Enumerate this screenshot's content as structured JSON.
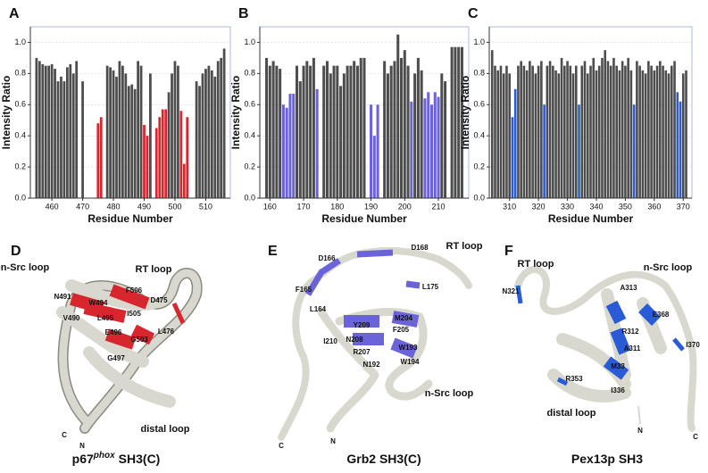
{
  "chart_data": [
    {
      "type": "bar",
      "title": "A",
      "xlabel": "Residue Number",
      "ylabel": "Intensity Ratio",
      "color": "#4d4d4d",
      "highlight_color": "#d8262e",
      "x": [
        455,
        456,
        457,
        458,
        459,
        460,
        461,
        462,
        463,
        464,
        465,
        466,
        467,
        468,
        469,
        470,
        471,
        472,
        473,
        474,
        475,
        476,
        477,
        478,
        479,
        480,
        481,
        482,
        483,
        484,
        485,
        486,
        487,
        488,
        489,
        490,
        491,
        492,
        493,
        494,
        495,
        496,
        497,
        498,
        499,
        500,
        501,
        502,
        503,
        504,
        505,
        506,
        507,
        508,
        509,
        510,
        511,
        512,
        513,
        514,
        515,
        516
      ],
      "values": [
        0.9,
        0.88,
        0.86,
        0.85,
        0.85,
        0.86,
        0.83,
        0.75,
        0.78,
        0.75,
        0.84,
        0.86,
        0.8,
        0.88,
        null,
        0.75,
        null,
        null,
        null,
        null,
        0.48,
        0.52,
        null,
        0.85,
        0.84,
        0.82,
        0.78,
        0.88,
        0.85,
        0.8,
        0.72,
        0.73,
        0.7,
        0.88,
        0.85,
        0.47,
        0.4,
        0.8,
        null,
        0.45,
        0.52,
        0.57,
        0.57,
        0.68,
        0.8,
        0.88,
        0.85,
        0.56,
        0.22,
        0.52,
        null,
        null,
        0.75,
        0.72,
        0.8,
        0.83,
        0.85,
        0.82,
        0.78,
        0.88,
        0.9,
        0.96
      ],
      "highlighted": [
        false,
        false,
        false,
        false,
        false,
        false,
        false,
        false,
        false,
        false,
        false,
        false,
        false,
        false,
        false,
        false,
        false,
        false,
        false,
        false,
        true,
        true,
        false,
        false,
        false,
        false,
        false,
        false,
        false,
        false,
        false,
        false,
        false,
        false,
        false,
        true,
        true,
        false,
        false,
        true,
        true,
        true,
        true,
        false,
        false,
        false,
        false,
        true,
        true,
        true,
        false,
        false,
        false,
        false,
        false,
        false,
        false,
        false,
        false,
        false,
        false,
        false
      ],
      "xlim": [
        453,
        518
      ],
      "xticks": [
        460,
        470,
        480,
        490,
        500,
        510
      ],
      "ylim": [
        0,
        1.1
      ],
      "yticks": [
        {
          "value": 0,
          "label": "0.0"
        },
        {
          "value": 0.2,
          "label": "0.2"
        },
        {
          "value": 0.4,
          "label": "0.4"
        },
        {
          "value": 0.6,
          "label": "0.6"
        },
        {
          "value": 0.8,
          "label": "0.8"
        },
        {
          "value": 1,
          "label": "1.0"
        }
      ]
    },
    {
      "type": "bar",
      "title": "B",
      "xlabel": "Residue Number",
      "ylabel": "Intensity Ratio",
      "color": "#4d4d4d",
      "highlight_color": "#6b63d8",
      "x": [
        159,
        160,
        161,
        162,
        163,
        164,
        165,
        166,
        167,
        168,
        169,
        170,
        171,
        172,
        173,
        174,
        175,
        176,
        177,
        178,
        179,
        180,
        181,
        182,
        183,
        184,
        185,
        186,
        187,
        188,
        189,
        190,
        191,
        192,
        193,
        194,
        195,
        196,
        197,
        198,
        199,
        200,
        201,
        202,
        203,
        204,
        205,
        206,
        207,
        208,
        209,
        210,
        211,
        212,
        213,
        214,
        215,
        216,
        217
      ],
      "values": [
        0.9,
        0.85,
        0.88,
        0.85,
        0.83,
        0.6,
        0.58,
        0.67,
        0.67,
        0.85,
        0.75,
        0.85,
        0.88,
        0.85,
        0.9,
        0.7,
        null,
        0.85,
        0.88,
        0.8,
        0.85,
        0.85,
        0.72,
        0.8,
        0.85,
        0.85,
        0.88,
        0.85,
        0.9,
        0.9,
        null,
        0.6,
        0.4,
        0.6,
        null,
        0.88,
        0.8,
        0.85,
        0.88,
        1.05,
        0.9,
        0.95,
        0.85,
        0.62,
        0.8,
        0.9,
        0.82,
        0.64,
        0.68,
        0.6,
        0.68,
        0.65,
        0.8,
        0.75,
        null,
        0.97,
        0.97,
        0.97,
        0.97
      ],
      "highlighted": [
        false,
        false,
        false,
        false,
        false,
        true,
        true,
        true,
        true,
        false,
        false,
        false,
        false,
        false,
        false,
        true,
        false,
        false,
        false,
        false,
        false,
        false,
        false,
        false,
        false,
        false,
        false,
        false,
        false,
        false,
        false,
        true,
        true,
        true,
        false,
        false,
        false,
        false,
        false,
        false,
        false,
        false,
        false,
        true,
        false,
        false,
        false,
        true,
        true,
        true,
        true,
        true,
        false,
        false,
        false,
        false,
        false,
        false,
        false
      ],
      "xlim": [
        157,
        219
      ],
      "xticks": [
        160,
        170,
        180,
        190,
        200,
        210
      ],
      "ylim": [
        0,
        1.1
      ],
      "yticks": [
        {
          "value": 0,
          "label": "0.0"
        },
        {
          "value": 0.2,
          "label": "0.2"
        },
        {
          "value": 0.4,
          "label": "0.4"
        },
        {
          "value": 0.6,
          "label": "0.6"
        },
        {
          "value": 0.8,
          "label": "0.8"
        },
        {
          "value": 1,
          "label": "1.0"
        }
      ]
    },
    {
      "type": "bar",
      "title": "C",
      "xlabel": "Residue Number",
      "ylabel": "Intensity Ratio",
      "color": "#4d4d4d",
      "highlight_color": "#2a5bd7",
      "x": [
        304,
        305,
        306,
        307,
        308,
        309,
        310,
        311,
        312,
        313,
        314,
        315,
        316,
        317,
        318,
        319,
        320,
        321,
        322,
        323,
        324,
        325,
        326,
        327,
        328,
        329,
        330,
        331,
        332,
        333,
        334,
        335,
        336,
        337,
        338,
        339,
        340,
        341,
        342,
        343,
        344,
        345,
        346,
        347,
        348,
        349,
        350,
        351,
        352,
        353,
        354,
        355,
        356,
        357,
        358,
        359,
        360,
        361,
        362,
        363,
        364,
        365,
        366,
        367,
        368,
        369,
        370,
        371
      ],
      "values": [
        0.95,
        0.85,
        0.82,
        0.85,
        0.8,
        0.85,
        0.8,
        0.52,
        0.7,
        0.85,
        0.88,
        0.85,
        0.82,
        0.88,
        0.85,
        0.8,
        0.85,
        0.88,
        0.6,
        0.85,
        0.88,
        0.85,
        0.82,
        0.8,
        0.9,
        0.85,
        0.88,
        0.85,
        0.8,
        0.85,
        0.6,
        0.85,
        0.88,
        0.8,
        0.85,
        0.9,
        0.82,
        0.85,
        0.9,
        0.95,
        0.88,
        0.85,
        0.9,
        0.85,
        0.82,
        0.88,
        0.85,
        0.9,
        0.82,
        0.6,
        0.88,
        0.85,
        0.82,
        0.8,
        0.88,
        0.85,
        0.82,
        0.85,
        0.88,
        0.85,
        0.82,
        0.8,
        0.85,
        0.88,
        0.68,
        0.62,
        0.8,
        0.82
      ],
      "highlighted": [
        false,
        false,
        false,
        false,
        false,
        false,
        false,
        true,
        true,
        false,
        false,
        false,
        false,
        false,
        false,
        false,
        false,
        false,
        true,
        false,
        false,
        false,
        false,
        false,
        false,
        false,
        false,
        false,
        false,
        false,
        true,
        false,
        false,
        false,
        false,
        false,
        false,
        false,
        false,
        false,
        false,
        false,
        false,
        false,
        false,
        false,
        false,
        false,
        false,
        true,
        false,
        false,
        false,
        false,
        false,
        false,
        false,
        false,
        false,
        false,
        false,
        false,
        false,
        false,
        true,
        true,
        false,
        false
      ],
      "xlim": [
        303,
        373
      ],
      "xticks": [
        310,
        320,
        330,
        340,
        350,
        360,
        370
      ],
      "ylim": [
        0,
        1.1
      ],
      "yticks": [
        {
          "value": 0,
          "label": "0.0"
        },
        {
          "value": 0.2,
          "label": "0.2"
        },
        {
          "value": 0.4,
          "label": "0.4"
        },
        {
          "value": 0.6,
          "label": "0.6"
        },
        {
          "value": 0.8,
          "label": "0.8"
        },
        {
          "value": 1,
          "label": "1.0"
        }
      ]
    }
  ],
  "structures": [
    {
      "letter": "D",
      "caption": [
        "p67",
        "phox",
        "SH3(C)"
      ],
      "labels": [
        "n-Src loop",
        "RT loop",
        "N491",
        "W494",
        "F506",
        "D475",
        "V490",
        "L495",
        "I505",
        "L476",
        "E496",
        "G503",
        "G497",
        "C",
        "N",
        "distal loop"
      ]
    },
    {
      "letter": "E",
      "caption": [
        "Grb2 SH3(C)"
      ],
      "labels": [
        "D166",
        "D168",
        "RT loop",
        "F165",
        "L175",
        "L164",
        "Y209",
        "M204",
        "I210",
        "N208",
        "F205",
        "R207",
        "W193",
        "N192",
        "W194",
        "n-Src loop",
        "C",
        "N"
      ]
    },
    {
      "letter": "F",
      "caption": [
        "Pex13p SH3"
      ],
      "labels": [
        "RT loop",
        "n-Src loop",
        "N321",
        "A313",
        "E368",
        "R312",
        "I370",
        "A311",
        "M33",
        "R353",
        "I336",
        "distal loop",
        "N",
        "C"
      ]
    }
  ]
}
